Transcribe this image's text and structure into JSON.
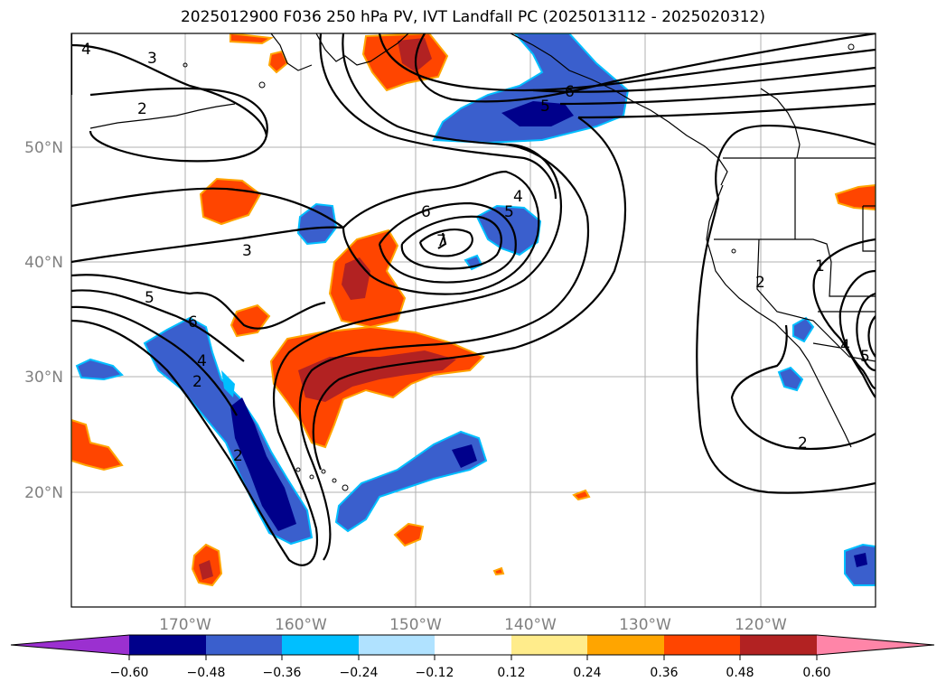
{
  "title": "2025012900 F036 250 hPa PV, IVT Landfall PC (2025013112 - 2025020312)",
  "lat_labels": [
    "50°N",
    "40°N",
    "30°N",
    "20°N"
  ],
  "lon_labels": [
    "170°W",
    "160°W",
    "150°W",
    "140°W",
    "130°W",
    "120°W"
  ],
  "colorbar": {
    "levels": [
      "−0.60",
      "−0.48",
      "−0.36",
      "−0.24",
      "−0.12",
      "0.12",
      "0.24",
      "0.36",
      "0.48",
      "0.60"
    ],
    "colors": [
      "#9b30d0",
      "#00008b",
      "#3a5fcd",
      "#00bfff",
      "#b0e2ff",
      "#ffffff",
      "#ffec8b",
      "#ffa500",
      "#ff4500",
      "#b22222",
      "#ff85a8"
    ]
  },
  "contour_labels": [
    "4",
    "3",
    "2",
    "3",
    "5",
    "6",
    "4",
    "2",
    "2",
    "6",
    "7",
    "4",
    "5",
    "6",
    "5",
    "1",
    "2",
    "4",
    "5",
    "2"
  ]
}
